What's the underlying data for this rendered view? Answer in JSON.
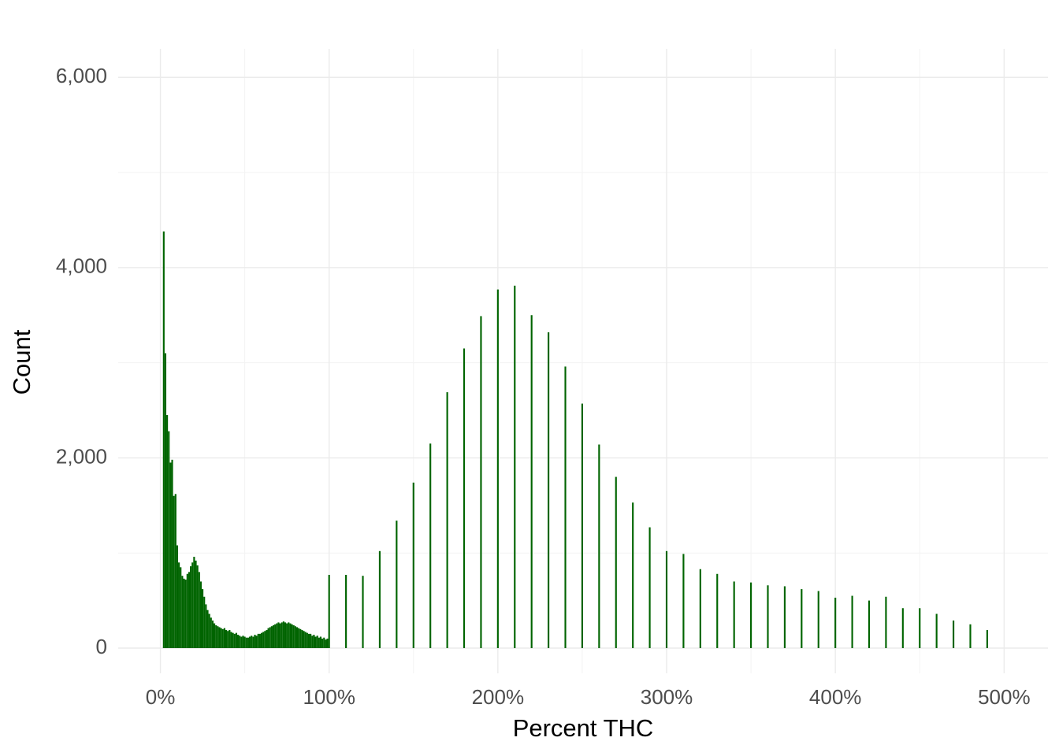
{
  "chart_data": {
    "type": "bar",
    "color": "#006400",
    "grid": true,
    "x_label": "Percent THC",
    "y_label": "Count",
    "x": [
      2,
      3,
      4,
      5,
      6,
      7,
      8,
      9,
      10,
      11,
      12,
      13,
      14,
      15,
      16,
      17,
      18,
      19,
      20,
      21,
      22,
      23,
      24,
      25,
      26,
      27,
      28,
      29,
      30,
      31,
      32,
      33,
      34,
      35,
      36,
      37,
      38,
      39,
      40,
      41,
      42,
      43,
      44,
      45,
      46,
      47,
      48,
      49,
      50,
      51,
      52,
      53,
      54,
      55,
      56,
      57,
      58,
      59,
      60,
      61,
      62,
      63,
      64,
      65,
      66,
      67,
      68,
      69,
      70,
      71,
      72,
      73,
      74,
      75,
      76,
      77,
      78,
      79,
      80,
      81,
      82,
      83,
      84,
      85,
      86,
      87,
      88,
      89,
      90,
      91,
      92,
      93,
      94,
      95,
      96,
      97,
      98,
      99,
      100,
      110,
      120,
      130,
      140,
      150,
      160,
      170,
      180,
      190,
      200,
      210,
      220,
      230,
      240,
      250,
      260,
      270,
      280,
      290,
      300,
      310,
      320,
      330,
      340,
      350,
      360,
      370,
      380,
      390,
      400,
      410,
      420,
      430,
      440,
      450,
      460,
      470,
      480,
      490
    ],
    "values": [
      4380,
      3100,
      2450,
      2280,
      1950,
      1980,
      1600,
      1620,
      1080,
      900,
      850,
      760,
      730,
      720,
      780,
      800,
      860,
      900,
      960,
      920,
      870,
      800,
      700,
      620,
      540,
      460,
      400,
      360,
      320,
      290,
      260,
      240,
      230,
      220,
      210,
      200,
      210,
      190,
      180,
      190,
      170,
      160,
      150,
      160,
      140,
      130,
      120,
      130,
      120,
      110,
      110,
      120,
      130,
      120,
      140,
      130,
      150,
      150,
      160,
      170,
      180,
      190,
      210,
      220,
      230,
      240,
      250,
      260,
      270,
      260,
      270,
      280,
      270,
      260,
      270,
      260,
      250,
      240,
      230,
      220,
      210,
      200,
      190,
      180,
      170,
      160,
      150,
      150,
      130,
      140,
      120,
      130,
      110,
      120,
      100,
      110,
      90,
      100,
      770,
      770,
      760,
      1020,
      1340,
      1740,
      2150,
      2690,
      3150,
      3490,
      3770,
      3810,
      3500,
      3320,
      2960,
      2570,
      2140,
      1800,
      1530,
      1270,
      1020,
      990,
      830,
      780,
      700,
      690,
      660,
      650,
      620,
      600,
      530,
      550,
      500,
      540,
      420,
      420,
      360,
      290,
      250,
      190
    ],
    "xlim": [
      -25,
      526
    ],
    "ylim": [
      -265,
      6300
    ],
    "xticks": [
      {
        "value": 0,
        "label": "0%"
      },
      {
        "value": 100,
        "label": "100%"
      },
      {
        "value": 200,
        "label": "200%"
      },
      {
        "value": 300,
        "label": "300%"
      },
      {
        "value": 400,
        "label": "400%"
      },
      {
        "value": 500,
        "label": "500%"
      }
    ],
    "yticks": [
      0,
      {
        "value": 2000,
        "label": "2,000"
      },
      {
        "value": 4000,
        "label": "4,000"
      },
      {
        "value": 6000,
        "label": "6,000"
      }
    ],
    "x_minor_ticks": [
      50,
      150,
      250,
      350,
      450
    ],
    "y_minor_ticks": [
      1000,
      3000,
      5000
    ]
  }
}
